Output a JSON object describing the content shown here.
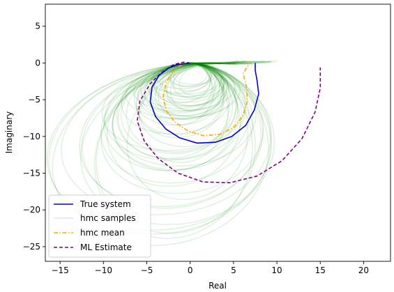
{
  "chart_data": {
    "type": "line",
    "title": "",
    "xlabel": "Real",
    "ylabel": "Imaginary",
    "xlim": [
      -16.7,
      23.1
    ],
    "ylim": [
      -27.0,
      8.0
    ],
    "xticks": [
      -15,
      -10,
      -5,
      0,
      5,
      10,
      15,
      20
    ],
    "yticks": [
      5,
      0,
      -5,
      -10,
      -15,
      -20,
      -25
    ],
    "grid": false,
    "legend_position": "lower-left",
    "series": [
      {
        "name": "True system",
        "color": "#0000cc",
        "style": "solid",
        "points": [
          [
            0.0,
            0.0
          ],
          [
            -0.6,
            -0.1
          ],
          [
            -1.5,
            -0.2
          ],
          [
            -2.5,
            -0.7
          ],
          [
            -3.6,
            -1.7
          ],
          [
            -4.4,
            -3.3
          ],
          [
            -4.6,
            -5.3
          ],
          [
            -4.0,
            -7.3
          ],
          [
            -2.8,
            -9.0
          ],
          [
            -1.2,
            -10.2
          ],
          [
            0.8,
            -10.9
          ],
          [
            2.9,
            -10.8
          ],
          [
            4.8,
            -10.0
          ],
          [
            6.4,
            -8.5
          ],
          [
            7.4,
            -6.4
          ],
          [
            7.9,
            -4.2
          ],
          [
            7.7,
            -2.3
          ],
          [
            7.5,
            -1.0
          ],
          [
            7.5,
            0.0
          ]
        ]
      },
      {
        "name": "hmc samples",
        "color": "#008000",
        "style": "solid",
        "count": 60,
        "points": []
      },
      {
        "name": "hmc mean",
        "color": "#ffa500",
        "style": "dash-dot",
        "points": [
          [
            0.0,
            0.0
          ],
          [
            -0.5,
            -0.1
          ],
          [
            -1.2,
            -0.4
          ],
          [
            -2.1,
            -1.3
          ],
          [
            -2.8,
            -2.8
          ],
          [
            -3.1,
            -4.6
          ],
          [
            -2.8,
            -6.4
          ],
          [
            -1.8,
            -8.0
          ],
          [
            -0.2,
            -9.3
          ],
          [
            1.6,
            -9.9
          ],
          [
            3.5,
            -9.7
          ],
          [
            5.1,
            -8.7
          ],
          [
            6.1,
            -7.1
          ],
          [
            6.6,
            -5.2
          ],
          [
            6.5,
            -3.2
          ],
          [
            6.1,
            -1.4
          ],
          [
            6.9,
            0.0
          ]
        ]
      },
      {
        "name": "ML Estimate",
        "color": "#800080",
        "style": "dashed",
        "points": [
          [
            0.0,
            0.0
          ],
          [
            -0.8,
            0.1
          ],
          [
            -1.9,
            -0.2
          ],
          [
            -3.2,
            -1.2
          ],
          [
            -4.6,
            -2.8
          ],
          [
            -5.8,
            -5.2
          ],
          [
            -6.1,
            -7.9
          ],
          [
            -5.3,
            -10.6
          ],
          [
            -3.7,
            -13.0
          ],
          [
            -1.4,
            -15.0
          ],
          [
            1.5,
            -16.2
          ],
          [
            4.6,
            -16.3
          ],
          [
            7.7,
            -15.4
          ],
          [
            10.6,
            -13.3
          ],
          [
            12.9,
            -10.3
          ],
          [
            14.4,
            -6.7
          ],
          [
            15.0,
            -3.4
          ],
          [
            15.0,
            -0.6
          ]
        ]
      }
    ]
  }
}
